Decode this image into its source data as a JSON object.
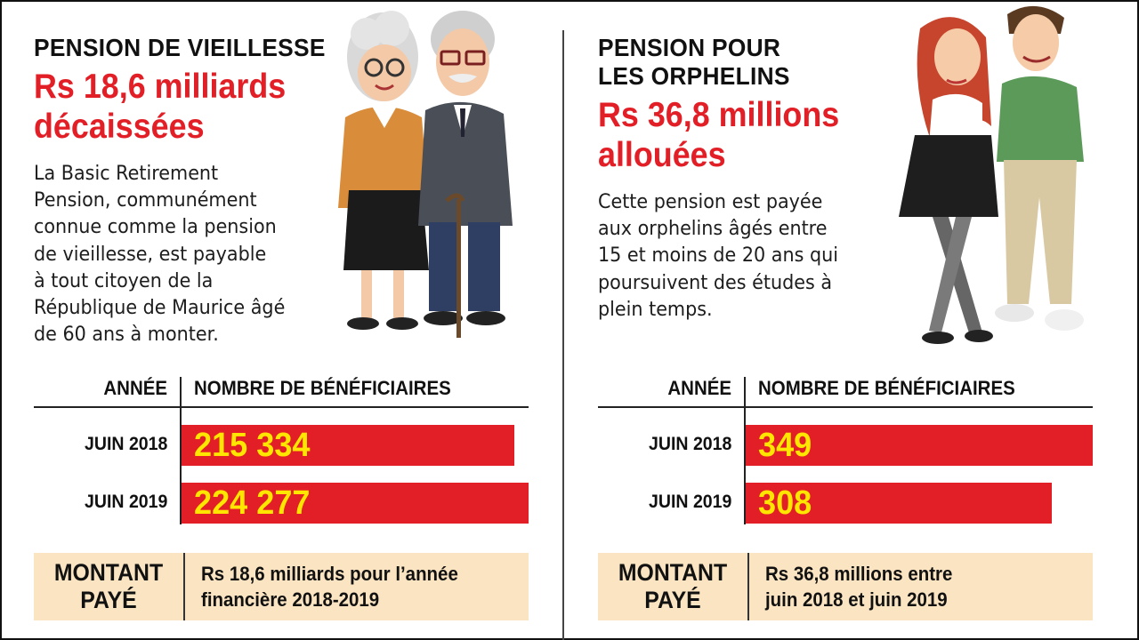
{
  "left": {
    "kicker": "PENSION DE VIEILLESSE",
    "headline_line1": "Rs 18,6 milliards",
    "headline_line2": "décaissées",
    "body_lines": [
      "La Basic Retirement",
      "Pension, communément",
      "connue comme la pension",
      "de vieillesse, est payable",
      "à tout citoyen de la",
      "République de Maurice âgé",
      "de 60 ans à monter."
    ],
    "illustration": "elderly-couple-illustration",
    "col_year": "ANNÉE",
    "col_beneficiaries": "NOMBRE DE BÉNÉFICIAIRES",
    "rows": [
      {
        "label": "JUIN 2018",
        "value": 215334,
        "display": "215 334"
      },
      {
        "label": "JUIN 2019",
        "value": 224277,
        "display": "224 277"
      }
    ],
    "paid_label_line1": "MONTANT",
    "paid_label_line2": "PAYÉ",
    "paid_text_line1": "Rs 18,6 milliards pour l’année",
    "paid_text_line2": "financière 2018-2019"
  },
  "right": {
    "kicker_line1": "PENSION POUR",
    "kicker_line2": "LES ORPHELINS",
    "headline_line1": "Rs 36,8 millions",
    "headline_line2": "allouées",
    "body_lines": [
      "Cette pension est payée",
      "aux orphelins âgés entre",
      "15 et moins de 20 ans qui",
      "poursuivent des études à",
      "plein temps."
    ],
    "illustration": "young-couple-illustration",
    "col_year": "ANNÉE",
    "col_beneficiaries": "NOMBRE DE BÉNÉFICIAIRES",
    "rows": [
      {
        "label": "JUIN 2018",
        "value": 349,
        "display": "349"
      },
      {
        "label": "JUIN 2019",
        "value": 308,
        "display": "308"
      }
    ],
    "paid_label_line1": "MONTANT",
    "paid_label_line2": "PAYÉ",
    "paid_text_line1": "Rs 36,8 millions entre",
    "paid_text_line2": "juin 2018 et juin 2019"
  },
  "colors": {
    "accent_red": "#e21f26",
    "value_yellow": "#ffe600",
    "box_beige": "#fbe4c1"
  },
  "chart_data": [
    {
      "type": "bar",
      "orientation": "horizontal",
      "categories": [
        "JUIN 2018",
        "JUIN 2019"
      ],
      "values": [
        215334,
        224277
      ],
      "xlabel": "NOMBRE DE BÉNÉFICIAIRES",
      "ylabel": "ANNÉE"
    },
    {
      "type": "bar",
      "orientation": "horizontal",
      "categories": [
        "JUIN 2018",
        "JUIN 2019"
      ],
      "values": [
        349,
        308
      ],
      "xlabel": "NOMBRE DE BÉNÉFICIAIRES",
      "ylabel": "ANNÉE"
    }
  ]
}
